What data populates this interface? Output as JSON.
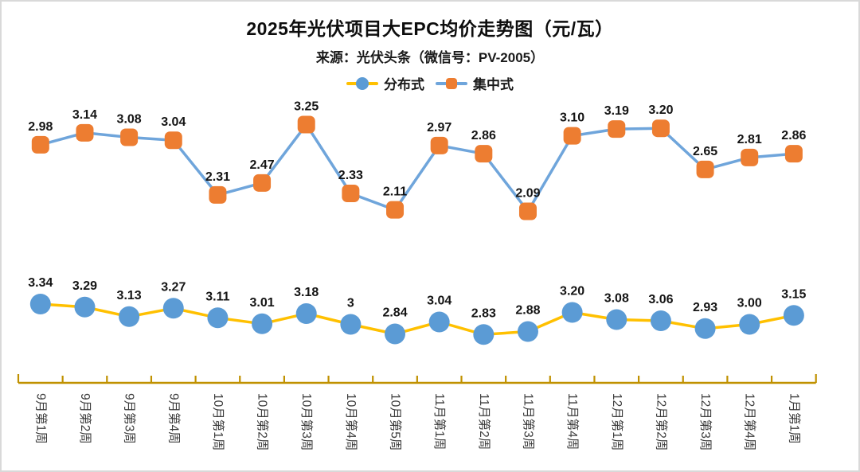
{
  "page": {
    "background": "#ffffff",
    "border_color": "#d9d9d9"
  },
  "chart_data": {
    "type": "line",
    "title": "2025年光伏项目大EPC均价走势图（元/瓦）",
    "subtitle": "来源：光伏头条（微信号：PV-2005）",
    "unit": "元/瓦",
    "legend_position": "top",
    "gridlines": false,
    "y_axis_shown": false,
    "categories": [
      "9月第1周",
      "9月第2周",
      "9月第3周",
      "9月第4周",
      "10月第1周",
      "10月第2周",
      "10月第3周",
      "10月第4周",
      "10月第5周",
      "11月第1周",
      "11月第2周",
      "11月第3周",
      "11月第4周",
      "12月第1周",
      "12月第2周",
      "12月第3周",
      "12月第4周",
      "1月第1周"
    ],
    "series": [
      {
        "name": "分布式",
        "marker": "circle",
        "marker_color": "#5B9BD5",
        "line_color": "#FFC000",
        "value_range": [
          2.83,
          3.34
        ],
        "values": [
          3.34,
          3.29,
          3.13,
          3.27,
          3.11,
          3.01,
          3.18,
          3,
          2.84,
          3.04,
          2.83,
          2.88,
          3.2,
          3.08,
          3.06,
          2.93,
          3.0,
          3.15
        ],
        "labels": [
          "3.34",
          "3.29",
          "3.13",
          "3.27",
          "3.11",
          "3.01",
          "3.18",
          "3",
          "2.84",
          "3.04",
          "2.83",
          "2.88",
          "3.20",
          "3.08",
          "3.06",
          "2.93",
          "3.00",
          "3.15"
        ]
      },
      {
        "name": "集中式",
        "marker": "rounded-square",
        "marker_color": "#ED7D31",
        "line_color": "#6FA5DB",
        "value_range": [
          2.09,
          3.25
        ],
        "values": [
          2.98,
          3.14,
          3.08,
          3.04,
          2.31,
          2.47,
          3.25,
          2.33,
          2.11,
          2.97,
          2.86,
          2.09,
          3.1,
          3.19,
          3.2,
          2.65,
          2.81,
          2.86
        ],
        "labels": [
          "2.98",
          "3.14",
          "3.08",
          "3.04",
          "2.31",
          "2.47",
          "3.25",
          "2.33",
          "2.11",
          "2.97",
          "2.86",
          "2.09",
          "3.10",
          "3.19",
          "3.20",
          "2.65",
          "2.81",
          "2.86"
        ]
      }
    ],
    "axis": {
      "line_color": "#C09100",
      "label_color": "#3c3c3c",
      "label_rotation_deg": 90
    },
    "data_label_color": "#141414"
  }
}
